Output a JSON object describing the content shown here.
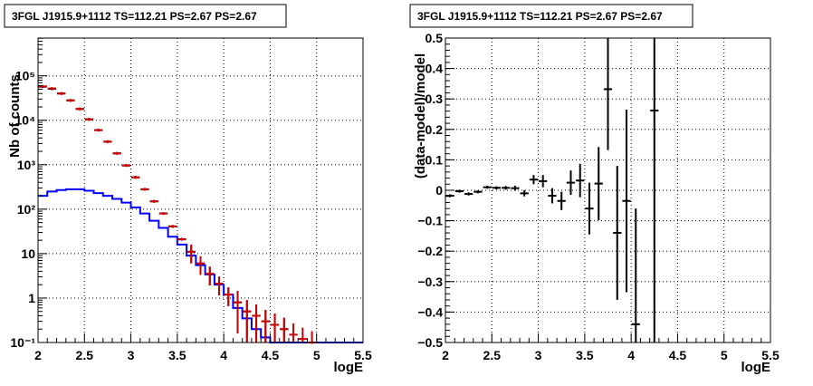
{
  "chart_data": [
    {
      "type": "line",
      "title": "3FGL J1915.9+1112 TS=112.21 PS=2.67 PS=2.67",
      "xlabel": "logE",
      "ylabel": "Nb of counts",
      "x_scale": "linear",
      "y_scale": "log",
      "xlim": [
        2,
        5.5
      ],
      "ylim": [
        0.1,
        700000
      ],
      "grid": true,
      "x_tick_labels": [
        "2",
        "2.5",
        "3",
        "3.5",
        "4",
        "4.5",
        "5",
        "5.5"
      ],
      "y_tick_labels": [
        "10⁵",
        "10⁴",
        "10³",
        "10²",
        "10",
        "1",
        "10⁻¹"
      ],
      "series": [
        {
          "color": "#0000ff",
          "style": "histogram",
          "bin_width": 0.1,
          "x": [
            2.0,
            2.1,
            2.2,
            2.3,
            2.4,
            2.5,
            2.6,
            2.7,
            2.8,
            2.9,
            3.0,
            3.1,
            3.2,
            3.3,
            3.4,
            3.5,
            3.6,
            3.7,
            3.8,
            3.9,
            4.0,
            4.1,
            4.2,
            4.3,
            4.4,
            4.5,
            4.6,
            4.7,
            4.8,
            4.9,
            5.0,
            5.1,
            5.2,
            5.3,
            5.4
          ],
          "y": [
            200,
            250,
            270,
            280,
            280,
            260,
            230,
            200,
            170,
            140,
            110,
            80,
            55,
            38,
            24,
            16,
            9,
            5.5,
            3.4,
            2.0,
            1.2,
            0.6,
            0.35,
            0.2,
            0.13,
            0.1,
            0.1,
            0.1,
            0.1,
            0.1,
            0.1,
            0.1,
            0.1,
            0.1,
            0.1
          ]
        },
        {
          "color": "#000000",
          "style": "points",
          "x": [
            2.05,
            2.15,
            2.25,
            2.35,
            2.45,
            2.55,
            2.65,
            2.75,
            2.85,
            2.95,
            3.05,
            3.15,
            3.25,
            3.35,
            3.45,
            3.55,
            3.65,
            3.75,
            3.85,
            3.95,
            4.05,
            4.15,
            4.25,
            4.35,
            4.45,
            4.55,
            4.65
          ],
          "y": [
            57000,
            51000,
            40000,
            28000,
            18000,
            10500,
            6000,
            3300,
            1800,
            960,
            520,
            280,
            150,
            80,
            41,
            21,
            11,
            6,
            3.5,
            2.1,
            1.2,
            0.8,
            0.5,
            0.4,
            0.3,
            0.25,
            0.2
          ]
        },
        {
          "color": "#cc0000",
          "style": "points",
          "x": [
            2.05,
            2.15,
            2.25,
            2.35,
            2.45,
            2.55,
            2.65,
            2.75,
            2.85,
            2.95,
            3.05,
            3.15,
            3.25,
            3.35,
            3.45,
            3.55,
            3.65,
            3.75,
            3.85,
            3.95,
            4.05,
            4.15,
            4.25,
            4.35,
            4.45,
            4.55,
            4.65,
            4.75,
            4.85,
            4.95
          ],
          "y": [
            58000,
            52000,
            40000,
            28000,
            18000,
            10500,
            6000,
            3300,
            1800,
            960,
            520,
            280,
            150,
            80,
            41,
            21,
            11,
            6,
            3.5,
            2.1,
            1.2,
            0.8,
            0.5,
            0.4,
            0.3,
            0.25,
            0.2,
            0.15,
            0.12,
            0.1
          ]
        }
      ]
    },
    {
      "type": "scatter",
      "title": "3FGL J1915.9+1112 TS=112.21 PS=2.67 PS=2.67",
      "xlabel": "logE",
      "ylabel": "(data-model)/model",
      "xlim": [
        2,
        5.5
      ],
      "ylim": [
        -0.5,
        0.5
      ],
      "grid": true,
      "x_tick_labels": [
        "2",
        "2.5",
        "3",
        "3.5",
        "4",
        "4.5",
        "5",
        "5.5"
      ],
      "y_tick_labels": [
        "0.5",
        "0.4",
        "0.3",
        "0.2",
        "0.1",
        "0",
        "−0.1",
        "−0.2",
        "−0.3",
        "−0.4",
        "−0.5"
      ],
      "series": [
        {
          "color": "#000000",
          "x": [
            2.05,
            2.15,
            2.25,
            2.35,
            2.45,
            2.55,
            2.65,
            2.75,
            2.85,
            2.95,
            3.05,
            3.15,
            3.25,
            3.35,
            3.45,
            3.55,
            3.65,
            3.75,
            3.85,
            3.95,
            4.05,
            4.25
          ],
          "y": [
            -0.018,
            -0.003,
            -0.012,
            -0.005,
            0.01,
            0.008,
            0.008,
            0.007,
            -0.01,
            0.035,
            0.03,
            -0.018,
            -0.035,
            0.025,
            0.032,
            -0.06,
            0.022,
            0.332,
            -0.14,
            -0.035,
            -0.44,
            0.262
          ],
          "err": [
            0.005,
            0.005,
            0.005,
            0.005,
            0.005,
            0.005,
            0.006,
            0.008,
            0.01,
            0.015,
            0.02,
            0.025,
            0.03,
            0.04,
            0.055,
            0.085,
            0.12,
            0.2,
            0.22,
            0.3,
            0.38,
            0.8
          ]
        }
      ]
    }
  ]
}
